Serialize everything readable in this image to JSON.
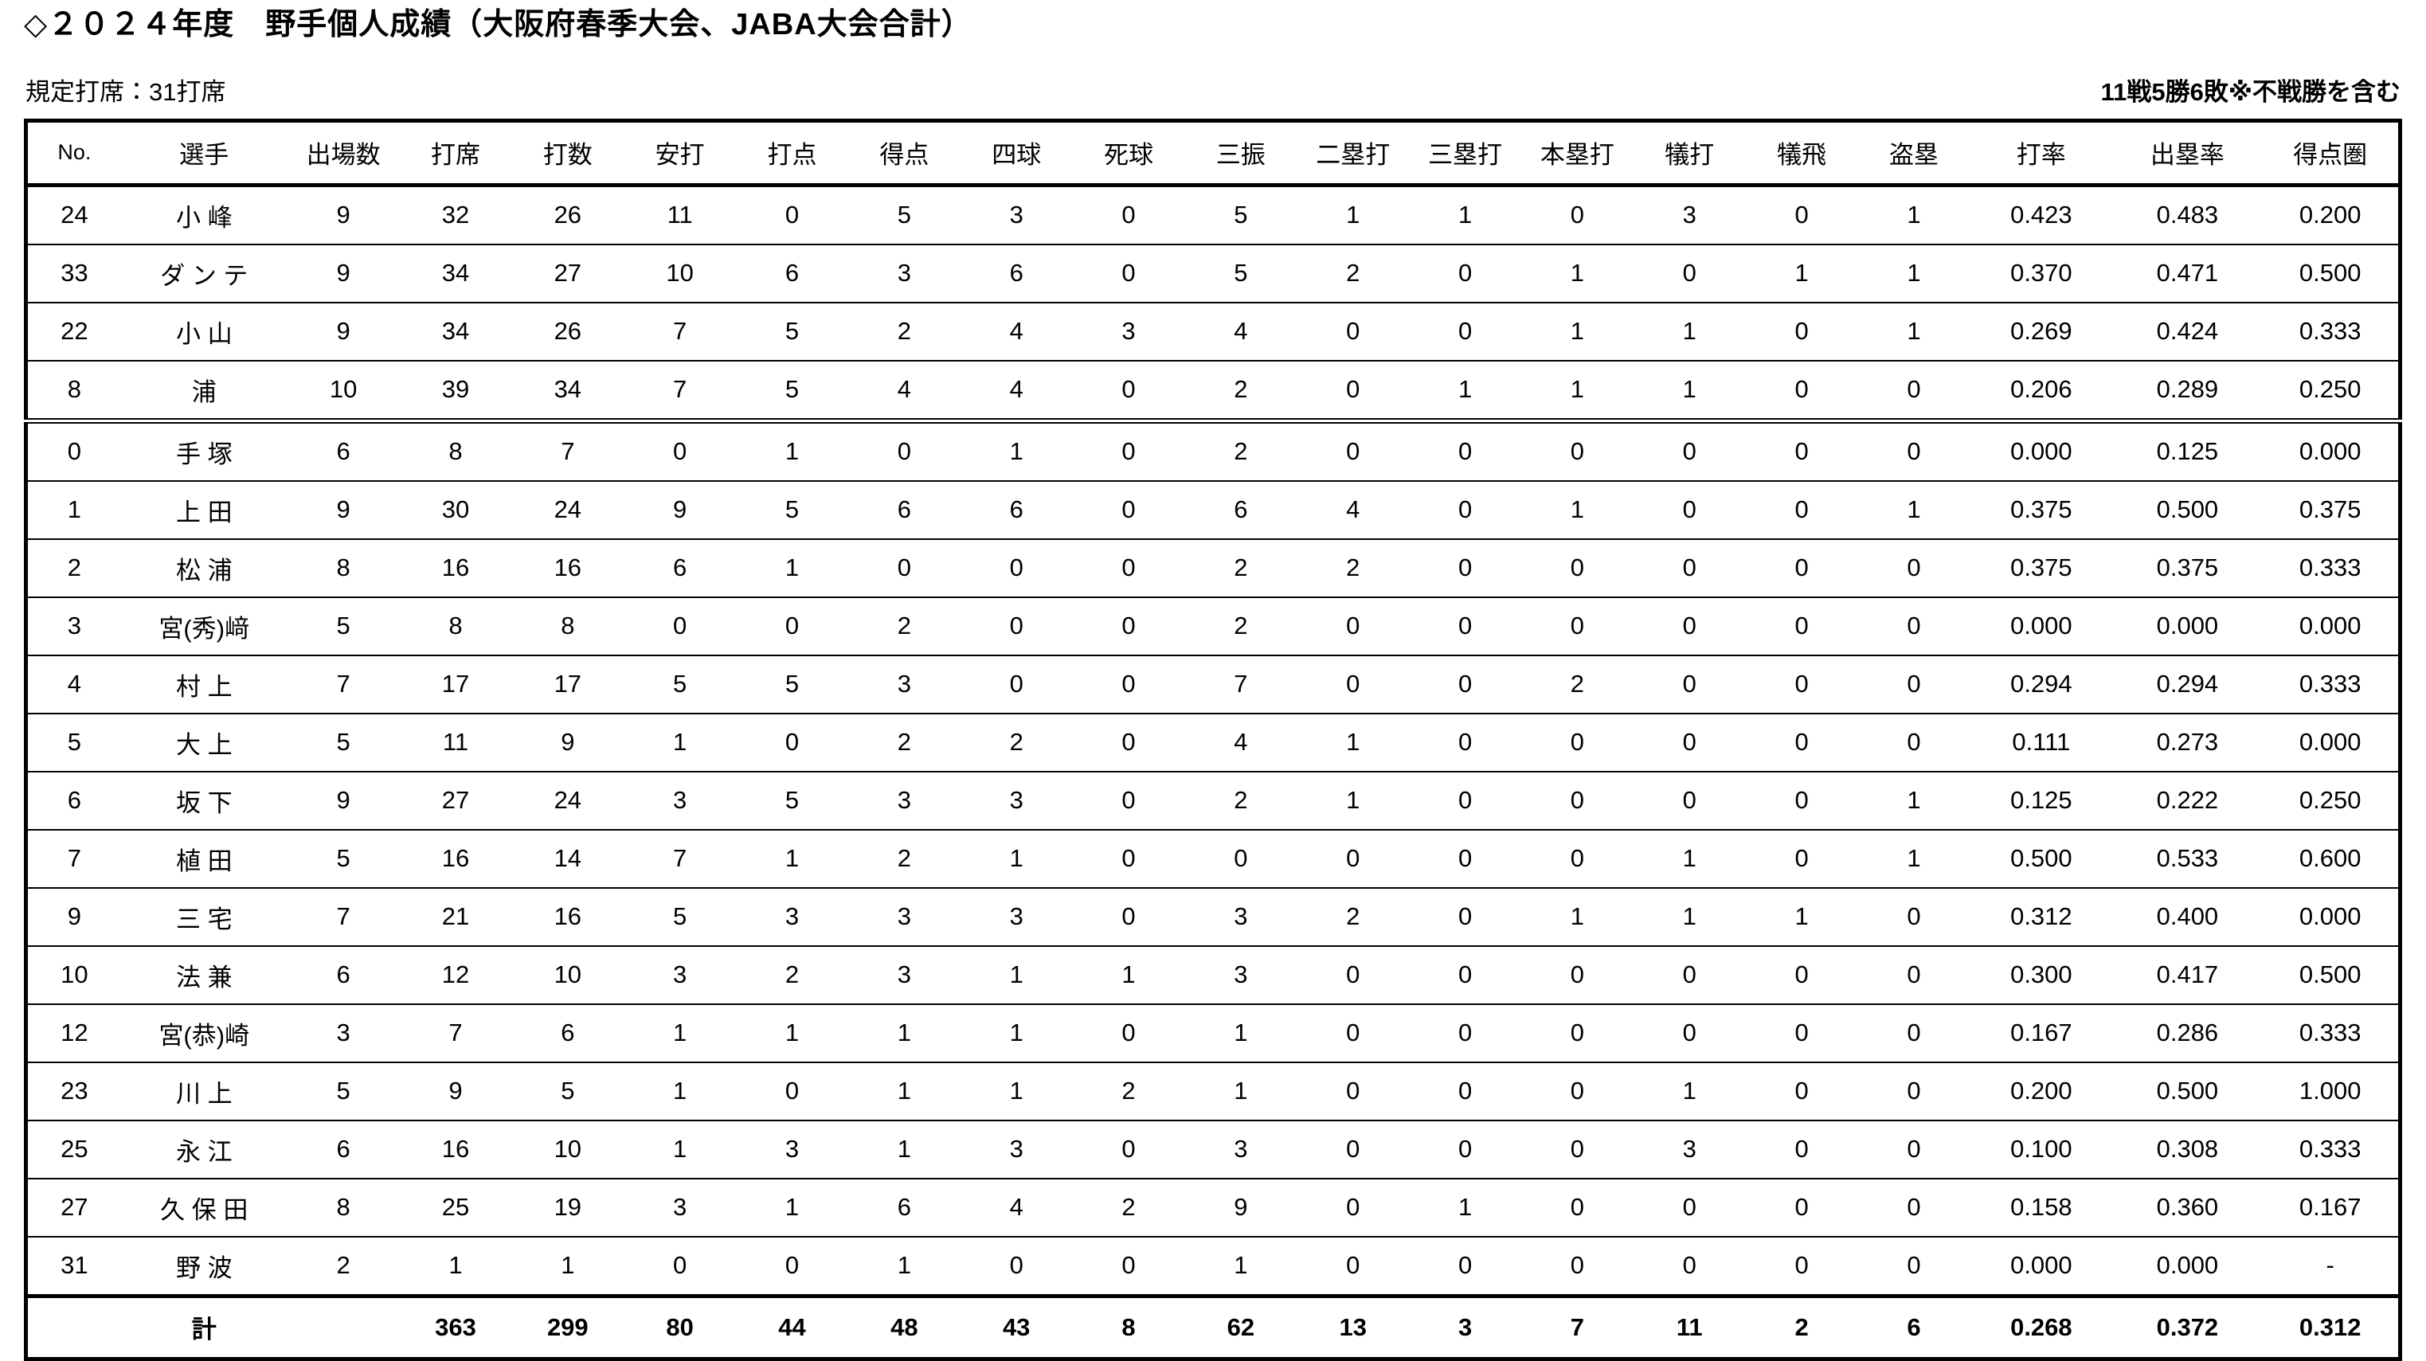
{
  "title": "◇２０２４年度　野手個人成績（大阪府春季大会、JABA大会合計）",
  "subtitle_left": "規定打席：31打席",
  "note_right": "11戦5勝6敗※不戦勝を含む",
  "table": {
    "columns": [
      "No.",
      "選手",
      "出場数",
      "打席",
      "打数",
      "安打",
      "打点",
      "得点",
      "四球",
      "死球",
      "三振",
      "二塁打",
      "三塁打",
      "本塁打",
      "犠打",
      "犠飛",
      "盗塁",
      "打率",
      "出塁率",
      "得点圏"
    ],
    "rows": [
      [
        "24",
        "小 峰",
        "9",
        "32",
        "26",
        "11",
        "0",
        "5",
        "3",
        "0",
        "5",
        "1",
        "1",
        "0",
        "3",
        "0",
        "1",
        "0.423",
        "0.483",
        "0.200"
      ],
      [
        "33",
        "ダ ン テ",
        "9",
        "34",
        "27",
        "10",
        "6",
        "3",
        "6",
        "0",
        "5",
        "2",
        "0",
        "1",
        "0",
        "1",
        "1",
        "0.370",
        "0.471",
        "0.500"
      ],
      [
        "22",
        "小 山",
        "9",
        "34",
        "26",
        "7",
        "5",
        "2",
        "4",
        "3",
        "4",
        "0",
        "0",
        "1",
        "1",
        "0",
        "1",
        "0.269",
        "0.424",
        "0.333"
      ],
      [
        "8",
        "浦",
        "10",
        "39",
        "34",
        "7",
        "5",
        "4",
        "4",
        "0",
        "2",
        "0",
        "1",
        "1",
        "1",
        "0",
        "0",
        "0.206",
        "0.289",
        "0.250"
      ],
      [
        "0",
        "手 塚",
        "6",
        "8",
        "7",
        "0",
        "1",
        "0",
        "1",
        "0",
        "2",
        "0",
        "0",
        "0",
        "0",
        "0",
        "0",
        "0.000",
        "0.125",
        "0.000"
      ],
      [
        "1",
        "上 田",
        "9",
        "30",
        "24",
        "9",
        "5",
        "6",
        "6",
        "0",
        "6",
        "4",
        "0",
        "1",
        "0",
        "0",
        "1",
        "0.375",
        "0.500",
        "0.375"
      ],
      [
        "2",
        "松 浦",
        "8",
        "16",
        "16",
        "6",
        "1",
        "0",
        "0",
        "0",
        "2",
        "2",
        "0",
        "0",
        "0",
        "0",
        "0",
        "0.375",
        "0.375",
        "0.333"
      ],
      [
        "3",
        "宮(秀)﨑",
        "5",
        "8",
        "8",
        "0",
        "0",
        "2",
        "0",
        "0",
        "2",
        "0",
        "0",
        "0",
        "0",
        "0",
        "0",
        "0.000",
        "0.000",
        "0.000"
      ],
      [
        "4",
        "村 上",
        "7",
        "17",
        "17",
        "5",
        "5",
        "3",
        "0",
        "0",
        "7",
        "0",
        "0",
        "2",
        "0",
        "0",
        "0",
        "0.294",
        "0.294",
        "0.333"
      ],
      [
        "5",
        "大 上",
        "5",
        "11",
        "9",
        "1",
        "0",
        "2",
        "2",
        "0",
        "4",
        "1",
        "0",
        "0",
        "0",
        "0",
        "0",
        "0.111",
        "0.273",
        "0.000"
      ],
      [
        "6",
        "坂 下",
        "9",
        "27",
        "24",
        "3",
        "5",
        "3",
        "3",
        "0",
        "2",
        "1",
        "0",
        "0",
        "0",
        "0",
        "1",
        "0.125",
        "0.222",
        "0.250"
      ],
      [
        "7",
        "植 田",
        "5",
        "16",
        "14",
        "7",
        "1",
        "2",
        "1",
        "0",
        "0",
        "0",
        "0",
        "0",
        "1",
        "0",
        "1",
        "0.500",
        "0.533",
        "0.600"
      ],
      [
        "9",
        "三 宅",
        "7",
        "21",
        "16",
        "5",
        "3",
        "3",
        "3",
        "0",
        "3",
        "2",
        "0",
        "1",
        "1",
        "1",
        "0",
        "0.312",
        "0.400",
        "0.000"
      ],
      [
        "10",
        "法 兼",
        "6",
        "12",
        "10",
        "3",
        "2",
        "3",
        "1",
        "1",
        "3",
        "0",
        "0",
        "0",
        "0",
        "0",
        "0",
        "0.300",
        "0.417",
        "0.500"
      ],
      [
        "12",
        "宮(恭)崎",
        "3",
        "7",
        "6",
        "1",
        "1",
        "1",
        "1",
        "0",
        "1",
        "0",
        "0",
        "0",
        "0",
        "0",
        "0",
        "0.167",
        "0.286",
        "0.333"
      ],
      [
        "23",
        "川 上",
        "5",
        "9",
        "5",
        "1",
        "0",
        "1",
        "1",
        "2",
        "1",
        "0",
        "0",
        "0",
        "1",
        "0",
        "0",
        "0.200",
        "0.500",
        "1.000"
      ],
      [
        "25",
        "永 江",
        "6",
        "16",
        "10",
        "1",
        "3",
        "1",
        "3",
        "0",
        "3",
        "0",
        "0",
        "0",
        "3",
        "0",
        "0",
        "0.100",
        "0.308",
        "0.333"
      ],
      [
        "27",
        "久 保 田",
        "8",
        "25",
        "19",
        "3",
        "1",
        "6",
        "4",
        "2",
        "9",
        "0",
        "1",
        "0",
        "0",
        "0",
        "0",
        "0.158",
        "0.360",
        "0.167"
      ],
      [
        "31",
        "野 波",
        "2",
        "1",
        "1",
        "0",
        "0",
        "1",
        "0",
        "0",
        "1",
        "0",
        "0",
        "0",
        "0",
        "0",
        "0",
        "0.000",
        "0.000",
        "-"
      ]
    ],
    "total_row": [
      "",
      "計",
      "",
      "363",
      "299",
      "80",
      "44",
      "48",
      "43",
      "8",
      "62",
      "13",
      "3",
      "7",
      "11",
      "2",
      "6",
      "0.268",
      "0.372",
      "0.312"
    ]
  }
}
